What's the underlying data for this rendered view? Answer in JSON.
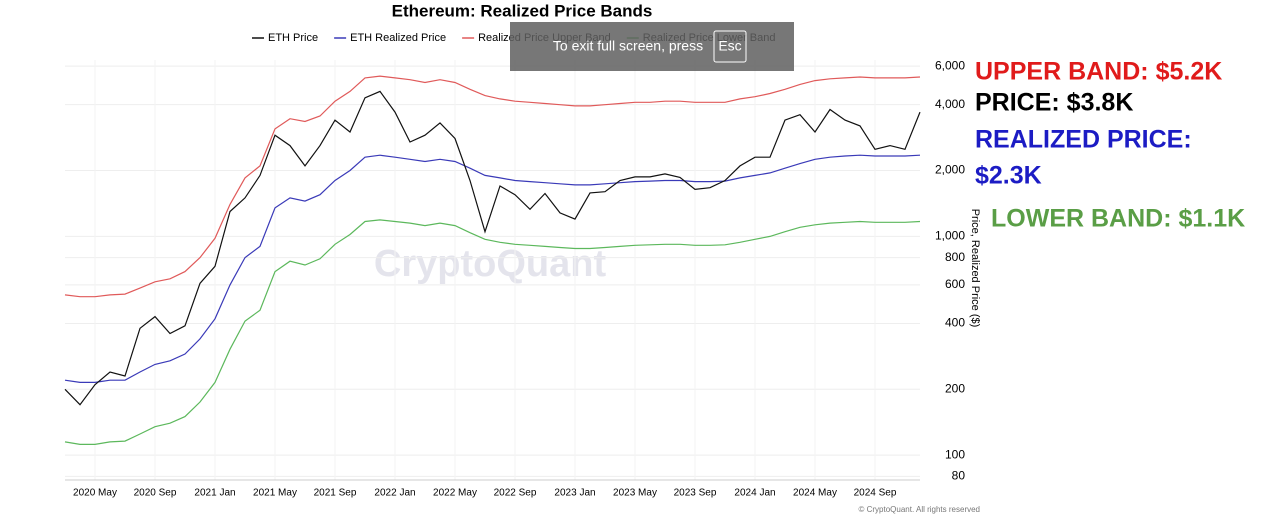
{
  "chart_data": {
    "type": "line",
    "title": "Ethereum: Realized Price Bands",
    "y_label": "Price, Realized Price ($)",
    "log_scale": true,
    "grid": true,
    "legend": "top",
    "watermark": "CryptoQuant",
    "credit": "© CryptoQuant. All rights reserved",
    "x": [
      "2020-03",
      "2020-04",
      "2020-05",
      "2020-06",
      "2020-07",
      "2020-08",
      "2020-09",
      "2020-10",
      "2020-11",
      "2020-12",
      "2021-01",
      "2021-02",
      "2021-03",
      "2021-04",
      "2021-05",
      "2021-06",
      "2021-07",
      "2021-08",
      "2021-09",
      "2021-10",
      "2021-11",
      "2021-12",
      "2022-01",
      "2022-02",
      "2022-03",
      "2022-04",
      "2022-05",
      "2022-06",
      "2022-07",
      "2022-08",
      "2022-09",
      "2022-10",
      "2022-11",
      "2022-12",
      "2023-01",
      "2023-02",
      "2023-03",
      "2023-04",
      "2023-05",
      "2023-06",
      "2023-07",
      "2023-08",
      "2023-09",
      "2023-10",
      "2023-11",
      "2023-12",
      "2024-01",
      "2024-02",
      "2024-03",
      "2024-04",
      "2024-05",
      "2024-06",
      "2024-07",
      "2024-08",
      "2024-09",
      "2024-10",
      "2024-11",
      "2024-12"
    ],
    "xlim": [
      "2020-03",
      "2024-12"
    ],
    "xticks": [
      {
        "value": "2020-05",
        "label": "2020 May"
      },
      {
        "value": "2020-09",
        "label": "2020 Sep"
      },
      {
        "value": "2021-01",
        "label": "2021 Jan"
      },
      {
        "value": "2021-05",
        "label": "2021 May"
      },
      {
        "value": "2021-09",
        "label": "2021 Sep"
      },
      {
        "value": "2022-01",
        "label": "2022 Jan"
      },
      {
        "value": "2022-05",
        "label": "2022 May"
      },
      {
        "value": "2022-09",
        "label": "2022 Sep"
      },
      {
        "value": "2023-01",
        "label": "2023 Jan"
      },
      {
        "value": "2023-05",
        "label": "2023 May"
      },
      {
        "value": "2023-09",
        "label": "2023 Sep"
      },
      {
        "value": "2024-01",
        "label": "2024 Jan"
      },
      {
        "value": "2024-05",
        "label": "2024 May"
      },
      {
        "value": "2024-09",
        "label": "2024 Sep"
      }
    ],
    "ylim": [
      77,
      6400
    ],
    "yticks": [
      80,
      100,
      200,
      400,
      600,
      800,
      {
        "value": 1000,
        "label": "1,000"
      },
      {
        "value": 2000,
        "label": "2,000"
      },
      {
        "value": 4000,
        "label": "4,000"
      },
      {
        "value": 6000,
        "label": "6,000"
      }
    ],
    "series": [
      {
        "name": "ETH Price",
        "color": "#111111",
        "values": [
          200,
          170,
          210,
          240,
          230,
          380,
          430,
          360,
          390,
          610,
          730,
          1300,
          1500,
          1900,
          2900,
          2600,
          2100,
          2600,
          3400,
          3000,
          4300,
          4600,
          3700,
          2700,
          2900,
          3300,
          2800,
          1800,
          1050,
          1700,
          1550,
          1330,
          1570,
          1280,
          1200,
          1580,
          1600,
          1800,
          1870,
          1870,
          1930,
          1860,
          1640,
          1670,
          1800,
          2100,
          2300,
          2300,
          3400,
          3600,
          3000,
          3800,
          3400,
          3200,
          2500,
          2600,
          2500,
          3700
        ]
      },
      {
        "name": "ETH Realized Price",
        "color": "#3a3ab8",
        "values": [
          220,
          215,
          215,
          220,
          220,
          240,
          260,
          270,
          290,
          340,
          420,
          600,
          800,
          900,
          1350,
          1500,
          1450,
          1550,
          1800,
          2000,
          2300,
          2350,
          2300,
          2250,
          2200,
          2250,
          2200,
          2050,
          1900,
          1850,
          1800,
          1780,
          1760,
          1740,
          1720,
          1720,
          1740,
          1760,
          1780,
          1790,
          1800,
          1800,
          1780,
          1780,
          1790,
          1850,
          1900,
          1950,
          2050,
          2150,
          2250,
          2300,
          2330,
          2350,
          2330,
          2330,
          2330,
          2350
        ]
      },
      {
        "name": "Realized Price Upper Band",
        "color": "#e05a5a",
        "values": [
          540,
          530,
          530,
          540,
          545,
          580,
          620,
          640,
          690,
          800,
          980,
          1400,
          1850,
          2100,
          3100,
          3450,
          3350,
          3550,
          4150,
          4600,
          5300,
          5400,
          5300,
          5200,
          5050,
          5200,
          5050,
          4700,
          4400,
          4250,
          4150,
          4100,
          4050,
          4000,
          3950,
          3950,
          4000,
          4050,
          4100,
          4100,
          4150,
          4150,
          4100,
          4100,
          4100,
          4250,
          4350,
          4500,
          4700,
          4950,
          5150,
          5250,
          5300,
          5350,
          5300,
          5300,
          5300,
          5350
        ]
      },
      {
        "name": "Realized Price Lower Band",
        "color": "#5cb85c",
        "values": [
          115,
          112,
          112,
          115,
          116,
          125,
          135,
          140,
          150,
          175,
          215,
          305,
          410,
          460,
          690,
          770,
          740,
          790,
          920,
          1020,
          1170,
          1190,
          1170,
          1150,
          1120,
          1150,
          1120,
          1040,
          970,
          940,
          920,
          910,
          900,
          890,
          880,
          880,
          890,
          900,
          910,
          915,
          920,
          920,
          910,
          910,
          915,
          940,
          970,
          1000,
          1050,
          1100,
          1130,
          1150,
          1160,
          1170,
          1160,
          1160,
          1160,
          1170
        ]
      }
    ],
    "annotations": [
      {
        "text": "UPPER BAND: $5.2K",
        "color": "#e01b1b"
      },
      {
        "text": "PRICE: $3.8K",
        "color": "#000000"
      },
      {
        "text": "REALIZED PRICE:",
        "color": "#1c1cc4"
      },
      {
        "text": "$2.3K",
        "color": "#1c1cc4"
      },
      {
        "text": "LOWER BAND: $1.1K",
        "color": "#5a9e46"
      }
    ]
  },
  "overlay": {
    "text": "To exit full screen, press",
    "key": "Esc"
  }
}
